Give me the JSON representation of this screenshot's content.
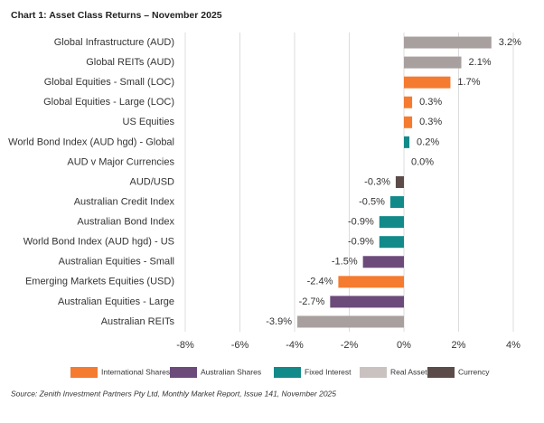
{
  "chart_data": {
    "type": "bar",
    "orientation": "horizontal",
    "title": "Chart 1: Asset Class Returns – November 2025",
    "categories": [
      "Global Infrastructure (AUD)",
      "Global REITs (AUD)",
      "Global Equities - Small (LOC)",
      "Global Equities - Large (LOC)",
      "US Equities",
      "World Bond Index (AUD hgd) - Global",
      "AUD v Major Currencies",
      "AUD/USD",
      "Australian Credit Index",
      "Australian Bond Index",
      "World Bond Index (AUD hgd) - US",
      "Australian Equities - Small",
      "Emerging Markets Equities (USD)",
      "Australian Equities - Large",
      "Australian REITs"
    ],
    "values": [
      3.2,
      2.1,
      1.7,
      0.3,
      0.3,
      0.2,
      0.0,
      -0.3,
      -0.5,
      -0.9,
      -0.9,
      -1.5,
      -2.4,
      -2.7,
      -3.9
    ],
    "value_labels": [
      "3.2%",
      "2.1%",
      "1.7%",
      "0.3%",
      "0.3%",
      "0.2%",
      "0.0%",
      "-0.3%",
      "-0.5%",
      "-0.9%",
      "-0.9%",
      "-1.5%",
      "-2.4%",
      "-2.7%",
      "-3.9%"
    ],
    "colors": [
      "#a8a09f",
      "#a8a09f",
      "#f47b30",
      "#f47b30",
      "#f47b30",
      "#138a8a",
      "#5b4b49",
      "#5b4b49",
      "#138a8a",
      "#138a8a",
      "#138a8a",
      "#6c4b7b",
      "#f47b30",
      "#6c4b7b",
      "#a8a09f"
    ],
    "legend": [
      {
        "name": "International Shares",
        "color": "#f47b30"
      },
      {
        "name": "Australian Shares",
        "color": "#6c4b7b"
      },
      {
        "name": "Fixed Interest",
        "color": "#138a8a"
      },
      {
        "name": "Real Assets",
        "color": "#c9c2c1"
      },
      {
        "name": "Currency",
        "color": "#5b4b49"
      }
    ],
    "xlim": [
      -8,
      4
    ],
    "xticks": [
      {
        "value": -8,
        "label": "-8%"
      },
      {
        "value": -6,
        "label": "-6%"
      },
      {
        "value": -4,
        "label": "-4%"
      },
      {
        "value": -2,
        "label": "-2%"
      },
      {
        "value": 0,
        "label": "0%"
      },
      {
        "value": 2,
        "label": "2%"
      },
      {
        "value": 4,
        "label": "4%"
      }
    ],
    "grid": true,
    "source": "Source: Zenith Investment Partners Pty Ltd, Monthly Market Report, Issue 141, November 2025"
  }
}
